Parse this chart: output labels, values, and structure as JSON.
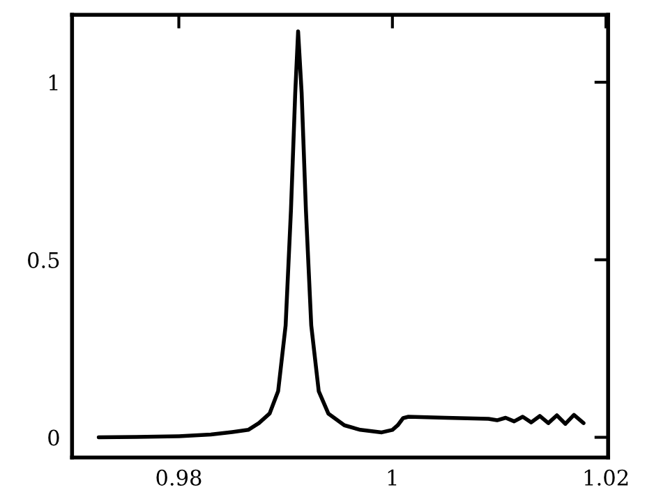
{
  "chart_data": {
    "type": "line",
    "xlim": [
      0.97,
      1.0202
    ],
    "ylim": [
      -0.057,
      1.19
    ],
    "xticks": [
      0.98,
      1,
      1.02
    ],
    "yticks": [
      0,
      0.5,
      1
    ],
    "grid": false,
    "line_style": "solid",
    "marker": "none",
    "series": [
      {
        "color": "#000000",
        "x": [
          0.9725,
          0.976,
          0.98,
          0.983,
          0.985,
          0.9865,
          0.9875,
          0.9885,
          0.9893,
          0.99,
          0.9905,
          0.9909,
          0.99117,
          0.9915,
          0.9919,
          0.9924,
          0.9931,
          0.994,
          0.9955,
          0.997,
          0.999,
          1.0,
          1.0005,
          1.001,
          1.0015,
          1.005,
          1.009,
          1.0098,
          1.0106,
          1.0114,
          1.0122,
          1.013,
          1.0138,
          1.0146,
          1.0154,
          1.0162,
          1.017,
          1.0179
        ],
        "values": [
          0.0,
          0.001,
          0.003,
          0.008,
          0.015,
          0.021,
          0.04,
          0.067,
          0.13,
          0.315,
          0.64,
          0.97,
          1.143,
          0.97,
          0.64,
          0.315,
          0.13,
          0.067,
          0.034,
          0.021,
          0.014,
          0.021,
          0.034,
          0.054,
          0.058,
          0.055,
          0.052,
          0.048,
          0.055,
          0.045,
          0.058,
          0.042,
          0.06,
          0.04,
          0.062,
          0.038,
          0.063,
          0.04
        ]
      }
    ]
  }
}
